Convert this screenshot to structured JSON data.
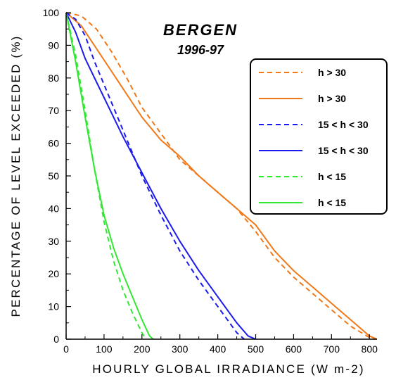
{
  "chart_data": {
    "type": "line",
    "title": "BERGEN",
    "subtitle": "1996-97",
    "xlabel": "HOURLY GLOBAL IRRADIANCE (W m-2)",
    "ylabel": "PERCENTAGE OF LEVEL EXCEEDED (%)",
    "xlim": [
      0,
      820
    ],
    "ylim": [
      0,
      100
    ],
    "xticks": [
      0,
      100,
      200,
      300,
      400,
      500,
      600,
      700,
      800
    ],
    "yticks": [
      0,
      10,
      20,
      30,
      40,
      50,
      60,
      70,
      80,
      90,
      100
    ],
    "grid": false,
    "legend_position": "right",
    "series": [
      {
        "name": "h > 30",
        "color": "#f07818",
        "dash": "dashed",
        "x": [
          0,
          40,
          80,
          120,
          160,
          200,
          250,
          300,
          350,
          400,
          450,
          500,
          550,
          600,
          650,
          700,
          750,
          800,
          815
        ],
        "y": [
          100,
          99,
          95,
          88,
          80,
          71,
          63,
          55,
          50,
          45,
          40,
          33,
          25,
          19,
          14,
          9,
          4,
          0.5,
          0
        ]
      },
      {
        "name": "h > 30",
        "color": "#f07818",
        "dash": "solid",
        "x": [
          0,
          40,
          80,
          120,
          160,
          200,
          250,
          300,
          350,
          400,
          450,
          500,
          550,
          600,
          650,
          700,
          750,
          800,
          820
        ],
        "y": [
          100,
          96,
          89,
          82,
          75,
          68,
          61,
          56,
          50,
          45,
          40,
          35,
          27,
          21,
          16,
          11,
          6,
          1,
          0
        ]
      },
      {
        "name": "15 < h < 30",
        "color": "#1a1aef",
        "dash": "dashed",
        "x": [
          0,
          25,
          50,
          75,
          100,
          150,
          200,
          250,
          300,
          350,
          400,
          450,
          470
        ],
        "y": [
          100,
          98,
          93,
          85,
          78,
          64,
          50,
          38,
          27,
          18,
          10,
          2,
          0
        ]
      },
      {
        "name": "15 < h < 30",
        "color": "#1a1aef",
        "dash": "solid",
        "x": [
          0,
          25,
          50,
          75,
          100,
          150,
          200,
          250,
          300,
          350,
          400,
          450,
          480,
          500
        ],
        "y": [
          100,
          94,
          86,
          80,
          74,
          62,
          51,
          40,
          30,
          21,
          13,
          5,
          1,
          0
        ]
      },
      {
        "name": "h < 15",
        "color": "#33e833",
        "dash": "dashed",
        "x": [
          0,
          25,
          50,
          75,
          100,
          125,
          150,
          175,
          200,
          210
        ],
        "y": [
          100,
          87,
          70,
          52,
          36,
          24,
          15,
          8,
          2,
          0
        ]
      },
      {
        "name": "h < 15",
        "color": "#33e833",
        "dash": "solid",
        "x": [
          0,
          25,
          50,
          75,
          100,
          125,
          150,
          175,
          200,
          220,
          230
        ],
        "y": [
          100,
          85,
          68,
          52,
          38,
          28,
          20,
          13,
          6,
          1,
          0
        ]
      }
    ]
  }
}
